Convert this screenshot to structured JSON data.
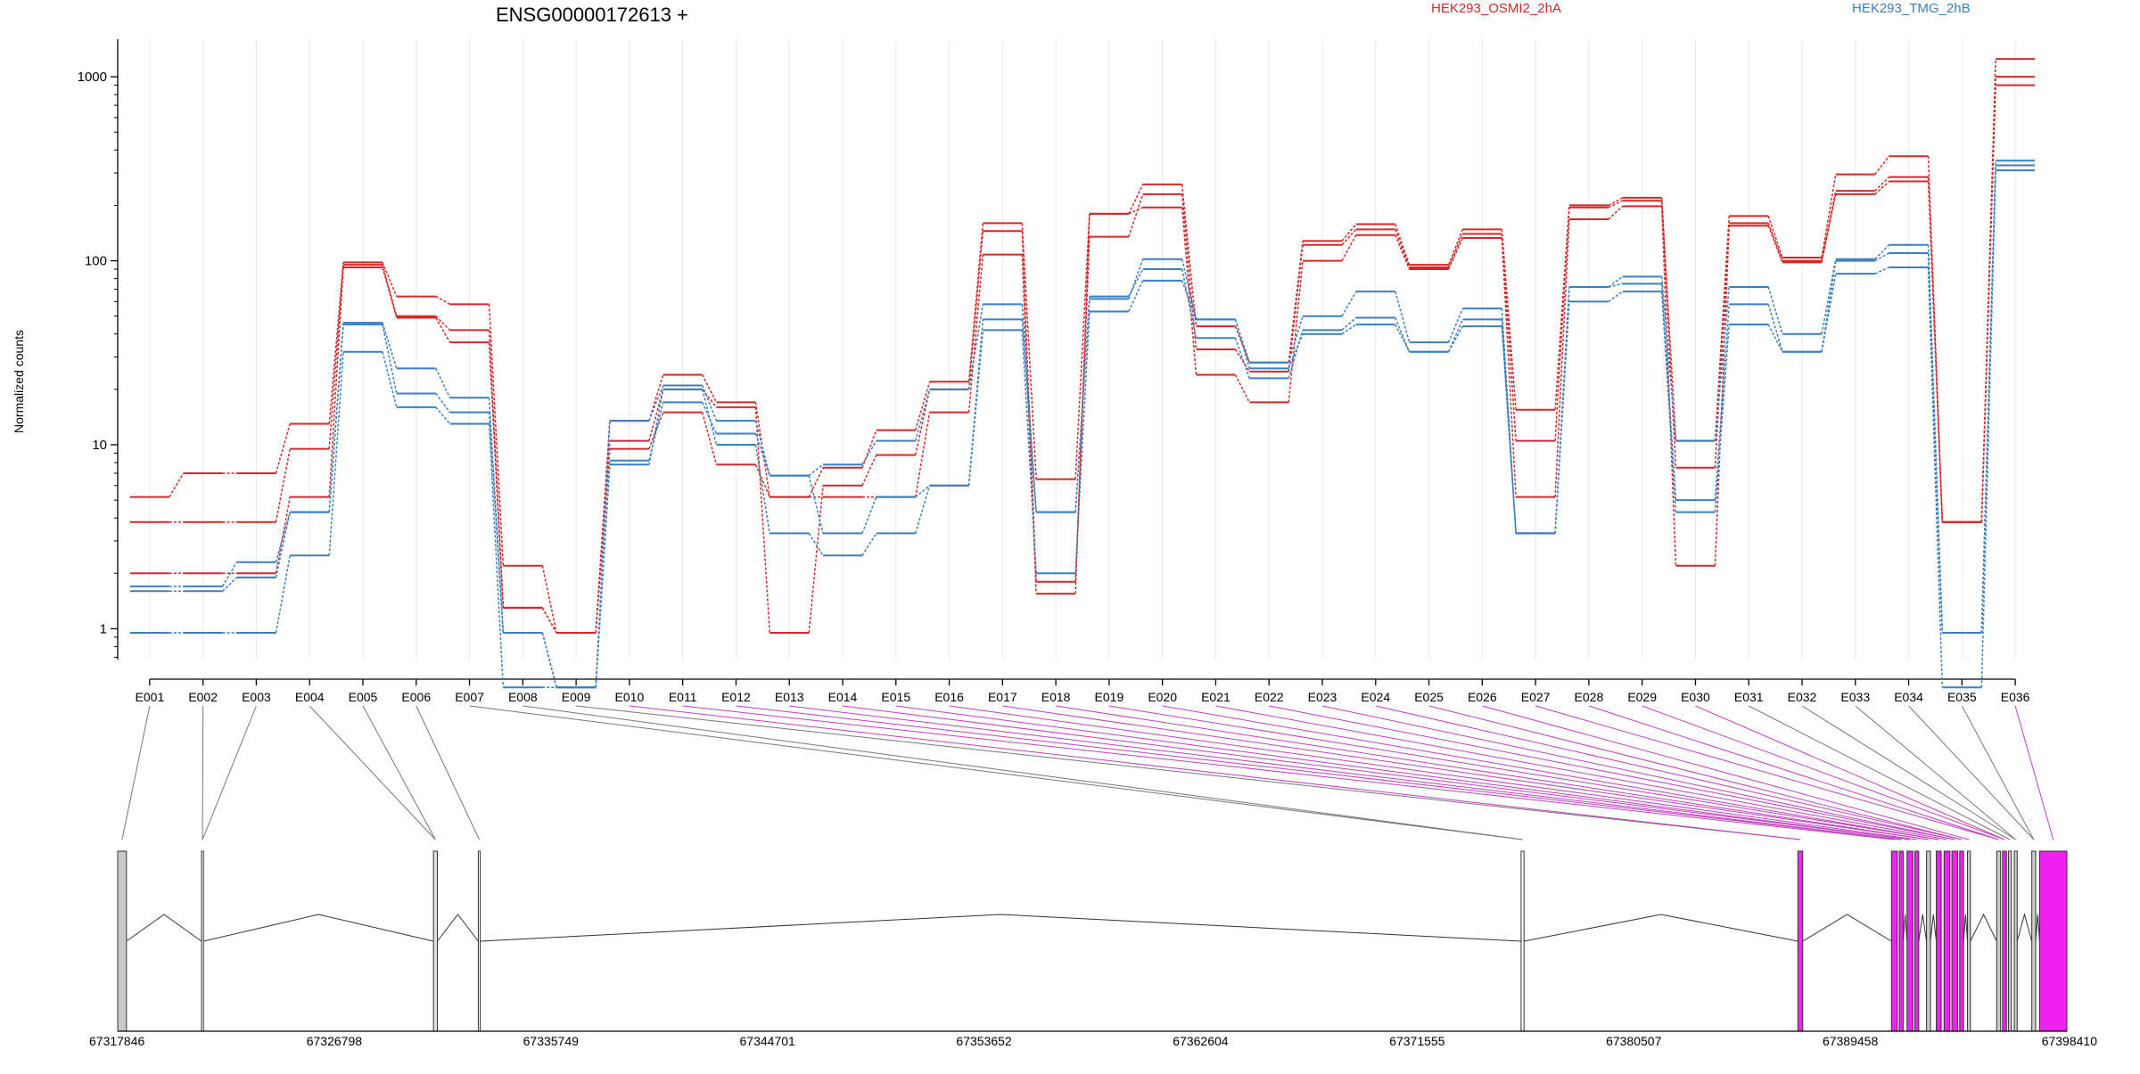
{
  "chart_data": {
    "type": "line",
    "title": "ENSG00000172613 +",
    "ylabel": "Normalized counts",
    "yscale": "log",
    "ylim": [
      0.68,
      1600
    ],
    "yticks": [
      1,
      10,
      100,
      1000
    ],
    "ytick_labels": [
      "1",
      "10",
      "100",
      "1000"
    ],
    "categories": [
      "E001",
      "E002",
      "E003",
      "E004",
      "E005",
      "E006",
      "E007",
      "E008",
      "E009",
      "E010",
      "E011",
      "E012",
      "E013",
      "E014",
      "E015",
      "E016",
      "E017",
      "E018",
      "E019",
      "E020",
      "E021",
      "E022",
      "E023",
      "E024",
      "E025",
      "E026",
      "E027",
      "E028",
      "E029",
      "E030",
      "E031",
      "E032",
      "E033",
      "E034",
      "E035",
      "E036"
    ],
    "legend": [
      {
        "name": "HEK293_OSMI2_2hA",
        "color": "#d62728"
      },
      {
        "name": "HEK293_TMG_2hB",
        "color": "#3a7fc0"
      }
    ],
    "series": [
      {
        "group": "HEK293_OSMI2_2hA",
        "color": "#d62728",
        "values": [
          5.2,
          7.0,
          7.0,
          13.0,
          98,
          64,
          58,
          2.2,
          0.95,
          13.5,
          24,
          17,
          5.2,
          7.5,
          12,
          22,
          160,
          6.5,
          180,
          260,
          44,
          28,
          128,
          158,
          95,
          148,
          15.5,
          200,
          220,
          10.5,
          175,
          104,
          295,
          370,
          3.8,
          1250
        ]
      },
      {
        "group": "HEK293_OSMI2_2hA",
        "color": "#d62728",
        "values": [
          3.8,
          3.8,
          3.8,
          9.5,
          95,
          50,
          42,
          1.3,
          0.95,
          10.5,
          20,
          16,
          0.95,
          6.0,
          8.8,
          20,
          145,
          1.8,
          135,
          230,
          33,
          25,
          122,
          148,
          92,
          140,
          10.5,
          195,
          212,
          7.5,
          160,
          100,
          240,
          285,
          3.8,
          1000
        ]
      },
      {
        "group": "HEK293_OSMI2_2hA",
        "color": "#d62728",
        "values": [
          2.0,
          2.0,
          2.0,
          5.2,
          92,
          49,
          36,
          1.3,
          0.95,
          9.5,
          15,
          7.8,
          5.2,
          5.2,
          5.2,
          15,
          108,
          1.55,
          180,
          195,
          24,
          17,
          100,
          138,
          90,
          133,
          5.2,
          168,
          198,
          2.2,
          155,
          98,
          230,
          270,
          3.8,
          900
        ]
      },
      {
        "group": "HEK293_TMG_2hB",
        "color": "#3a7fc0",
        "values": [
          1.7,
          1.7,
          2.3,
          4.3,
          46,
          26,
          18,
          0.95,
          0.48,
          13.5,
          21,
          13.5,
          6.8,
          7.8,
          10.5,
          20,
          58,
          4.3,
          62,
          102,
          48,
          28,
          50,
          68,
          36,
          55,
          3.3,
          72,
          82,
          10.5,
          72,
          40,
          102,
          122,
          0.95,
          350
        ]
      },
      {
        "group": "HEK293_TMG_2hB",
        "color": "#3a7fc0",
        "values": [
          1.6,
          1.6,
          1.9,
          4.3,
          45,
          19,
          15,
          0.95,
          0.48,
          8.2,
          17,
          11.5,
          6.8,
          3.3,
          5.2,
          6.0,
          48,
          4.3,
          64,
          90,
          38,
          23,
          42,
          49,
          32,
          48,
          3.3,
          72,
          75,
          5.0,
          58,
          32,
          100,
          110,
          0.95,
          330
        ]
      },
      {
        "group": "HEK293_TMG_2hB",
        "color": "#3a7fc0",
        "values": [
          0.95,
          0.95,
          0.95,
          2.5,
          32,
          16,
          13,
          0.48,
          0.48,
          7.8,
          20,
          10,
          3.3,
          2.5,
          3.3,
          6.0,
          42,
          2.0,
          53,
          78,
          48,
          26,
          40,
          45,
          32,
          44,
          3.3,
          60,
          68,
          4.3,
          45,
          32,
          85,
          92,
          0.48,
          310
        ]
      }
    ],
    "genomic_axis": {
      "range": [
        67317846,
        67398410
      ],
      "tick_labels": [
        "67317846",
        "67326798",
        "67335749",
        "67344701",
        "67353652",
        "67362604",
        "67371555",
        "67380507",
        "67389458",
        "67398410"
      ]
    }
  }
}
